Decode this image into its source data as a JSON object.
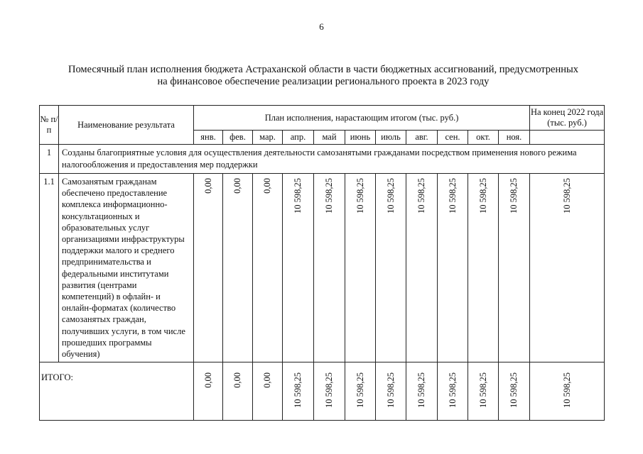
{
  "page_number": "6",
  "title": {
    "line1": "Помесячный план исполнения бюджета Астраханской области в части бюджетных ассигнований, предусмотренных",
    "line2": "на финансовое обеспечение реализации регионального проекта в 2023 году"
  },
  "table": {
    "headers": {
      "num": "№ п/п",
      "name": "Наименование результата",
      "plan": "План исполнения, нарастающим итогом (тыс. руб.)",
      "end": "На конец 2022 года (тыс. руб.)",
      "months": [
        "янв.",
        "фев.",
        "мар.",
        "апр.",
        "май",
        "июнь",
        "июль",
        "авг.",
        "сен.",
        "окт.",
        "ноя."
      ]
    },
    "section": {
      "num": "1",
      "text": "Созданы благоприятные условия для осуществления деятельности самозанятыми гражданами посредством применения нового режима налогообложения и предоставления мер поддержки"
    },
    "row": {
      "num": "1.1",
      "name": "Самозанятым гражданам обеспечено предоставление комплекса информационно-консультационных и образовательных услуг организациями инфраструктуры поддержки малого и среднего предпринимательства и федеральными институтами развития (центрами компетенций) в офлайн- и онлайн-форматах (количество самозанятых граждан, получивших услуги, в том числе прошедших программы обучения)",
      "values": [
        "0,00",
        "0,00",
        "0,00",
        "10 598,25",
        "10 598,25",
        "10 598,25",
        "10 598,25",
        "10 598,25",
        "10 598,25",
        "10 598,25",
        "10 598,25"
      ],
      "end_value": "10 598,25"
    },
    "total": {
      "label": "ИТОГО:",
      "values": [
        "0,00",
        "0,00",
        "0,00",
        "10 598,25",
        "10 598,25",
        "10 598,25",
        "10 598,25",
        "10 598,25",
        "10 598,25",
        "10 598,25",
        "10 598,25"
      ],
      "end_value": "10 598,25"
    }
  }
}
